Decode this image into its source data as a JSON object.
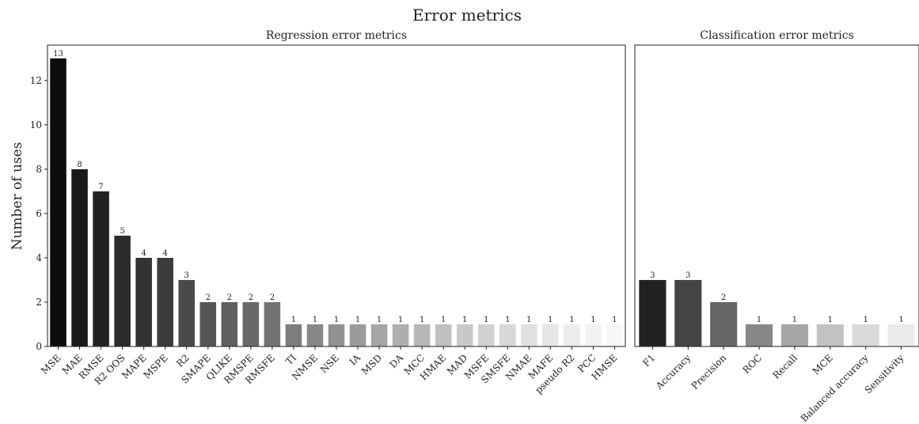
{
  "chart_data": {
    "type": "bar",
    "title": "Error metrics",
    "ylabel": "Number of uses",
    "ylim": [
      0,
      13.6
    ],
    "yticks": [
      0,
      2,
      4,
      6,
      8,
      10,
      12
    ],
    "grid": false,
    "panels": [
      {
        "subtitle": "Regression error metrics",
        "categories": [
          "MSE",
          "MAE",
          "RMSE",
          "R2 OOS",
          "MAPE",
          "MSPE",
          "R2",
          "SMAPE",
          "QLIKE",
          "RMSPE",
          "RMSFE",
          "TI",
          "NMSE",
          "NSE",
          "IA",
          "MSD",
          "DA",
          "MCC",
          "HMAE",
          "MAD",
          "MSFE",
          "SMSFE",
          "NMAE",
          "MAFE",
          "pseudo R2",
          "PCC",
          "HMSE"
        ],
        "values": [
          13,
          8,
          7,
          5,
          4,
          4,
          3,
          2,
          2,
          2,
          2,
          1,
          1,
          1,
          1,
          1,
          1,
          1,
          1,
          1,
          1,
          1,
          1,
          1,
          1,
          1,
          1
        ],
        "colors": [
          "#0d0d0d",
          "#1a1a1a",
          "#222222",
          "#2b2b2b",
          "#333333",
          "#3c3c3c",
          "#4a4a4a",
          "#555555",
          "#5f5f5f",
          "#696969",
          "#737373",
          "#7d7d7d",
          "#878787",
          "#919191",
          "#9b9b9b",
          "#a5a5a5",
          "#aeaeae",
          "#b7b7b7",
          "#c0c0c0",
          "#c8c8c8",
          "#d0d0d0",
          "#d8d8d8",
          "#e0e0e0",
          "#e6e6e6",
          "#ececec",
          "#f2f2f2",
          "#f7f7f7"
        ]
      },
      {
        "subtitle": "Classification error metrics",
        "categories": [
          "F1",
          "Accuracy",
          "Precision",
          "ROC",
          "Recall",
          "MCE",
          "Balanced accuracy",
          "Sensitivity"
        ],
        "values": [
          3,
          3,
          2,
          1,
          1,
          1,
          1,
          1
        ],
        "colors": [
          "#222222",
          "#444444",
          "#666666",
          "#888888",
          "#a6a6a6",
          "#c2c2c2",
          "#d9d9d9",
          "#ebebeb"
        ]
      }
    ]
  }
}
